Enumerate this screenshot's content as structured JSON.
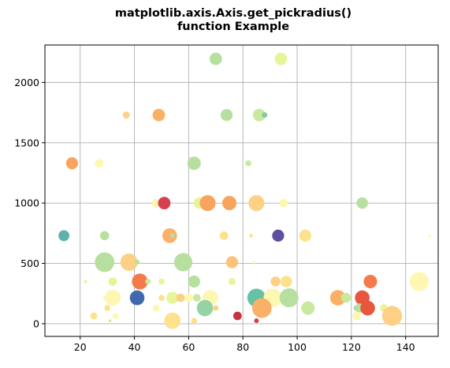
{
  "chart_data": {
    "type": "scatter",
    "title_lines": [
      "matplotlib.axis.Axis.get_pickradius()",
      "function Example"
    ],
    "xlabel": "",
    "ylabel": "",
    "xlim": [
      7,
      152
    ],
    "ylim": [
      -105,
      2310
    ],
    "xticks": [
      20,
      40,
      60,
      80,
      100,
      120,
      140
    ],
    "yticks": [
      0,
      500,
      1000,
      1500,
      2000
    ],
    "grid": true,
    "colormap": "Spectral",
    "points": [
      {
        "x": 70,
        "y": 2195,
        "size": 130,
        "color": "#b7e0a0"
      },
      {
        "x": 94,
        "y": 2195,
        "size": 130,
        "color": "#e6f598"
      },
      {
        "x": 37,
        "y": 1730,
        "size": 40,
        "color": "#fdd085"
      },
      {
        "x": 49,
        "y": 1730,
        "size": 130,
        "color": "#fbb068"
      },
      {
        "x": 74,
        "y": 1730,
        "size": 120,
        "color": "#b7e0a0"
      },
      {
        "x": 86,
        "y": 1730,
        "size": 130,
        "color": "#c9e99e"
      },
      {
        "x": 88,
        "y": 1730,
        "size": 25,
        "color": "#7fcc9d"
      },
      {
        "x": 17,
        "y": 1330,
        "size": 120,
        "color": "#f8a35e"
      },
      {
        "x": 27,
        "y": 1330,
        "size": 60,
        "color": "#fef7b2"
      },
      {
        "x": 62,
        "y": 1330,
        "size": 150,
        "color": "#b7e0a0"
      },
      {
        "x": 82,
        "y": 1330,
        "size": 30,
        "color": "#c9e99e"
      },
      {
        "x": 48,
        "y": 1000,
        "size": 60,
        "color": "#fef7b2"
      },
      {
        "x": 51,
        "y": 1000,
        "size": 130,
        "color": "#d5404e"
      },
      {
        "x": 64,
        "y": 1000,
        "size": 110,
        "color": "#e6f598"
      },
      {
        "x": 67,
        "y": 1000,
        "size": 210,
        "color": "#f8a35e"
      },
      {
        "x": 75,
        "y": 1000,
        "size": 170,
        "color": "#f8a35e"
      },
      {
        "x": 85,
        "y": 1000,
        "size": 210,
        "color": "#fdd085"
      },
      {
        "x": 95,
        "y": 1000,
        "size": 60,
        "color": "#fef7b2"
      },
      {
        "x": 124,
        "y": 1000,
        "size": 110,
        "color": "#b7e0a0"
      },
      {
        "x": 14,
        "y": 730,
        "size": 100,
        "color": "#5fb2ab"
      },
      {
        "x": 29,
        "y": 730,
        "size": 70,
        "color": "#b7e0a0"
      },
      {
        "x": 53,
        "y": 730,
        "size": 180,
        "color": "#fbb068"
      },
      {
        "x": 54,
        "y": 730,
        "size": 18,
        "color": "#b7e0a0"
      },
      {
        "x": 73,
        "y": 730,
        "size": 60,
        "color": "#fee18d"
      },
      {
        "x": 83,
        "y": 730,
        "size": 12,
        "color": "#fee18d"
      },
      {
        "x": 93,
        "y": 730,
        "size": 120,
        "color": "#5f4f9e"
      },
      {
        "x": 103,
        "y": 730,
        "size": 120,
        "color": "#fee18d"
      },
      {
        "x": 149,
        "y": 730,
        "size": 6,
        "color": "#fef7b2"
      },
      {
        "x": 29,
        "y": 510,
        "size": 320,
        "color": "#b7e0a0"
      },
      {
        "x": 38,
        "y": 510,
        "size": 250,
        "color": "#fdd085"
      },
      {
        "x": 41,
        "y": 510,
        "size": 20,
        "color": "#b7e0a0"
      },
      {
        "x": 58,
        "y": 510,
        "size": 280,
        "color": "#b7e0a0"
      },
      {
        "x": 76,
        "y": 510,
        "size": 120,
        "color": "#fdc37a"
      },
      {
        "x": 84,
        "y": 510,
        "size": 6,
        "color": "#fef7b2"
      },
      {
        "x": 22,
        "y": 350,
        "size": 8,
        "color": "#e6f598"
      },
      {
        "x": 32,
        "y": 350,
        "size": 60,
        "color": "#e6f598"
      },
      {
        "x": 40,
        "y": 350,
        "size": 25,
        "color": "#fee18d"
      },
      {
        "x": 42,
        "y": 350,
        "size": 210,
        "color": "#f57a49"
      },
      {
        "x": 45,
        "y": 350,
        "size": 25,
        "color": "#c9e99e"
      },
      {
        "x": 50,
        "y": 350,
        "size": 30,
        "color": "#e6f598"
      },
      {
        "x": 62,
        "y": 350,
        "size": 120,
        "color": "#b7e0a0"
      },
      {
        "x": 76,
        "y": 350,
        "size": 40,
        "color": "#e6f598"
      },
      {
        "x": 92,
        "y": 350,
        "size": 80,
        "color": "#fdd085"
      },
      {
        "x": 96,
        "y": 350,
        "size": 110,
        "color": "#fee18d"
      },
      {
        "x": 127,
        "y": 350,
        "size": 150,
        "color": "#f57a49"
      },
      {
        "x": 145,
        "y": 350,
        "size": 300,
        "color": "#fef7b2"
      },
      {
        "x": 29,
        "y": 215,
        "size": 8,
        "color": "#fef7b2"
      },
      {
        "x": 32,
        "y": 215,
        "size": 210,
        "color": "#fef7b2"
      },
      {
        "x": 41,
        "y": 215,
        "size": 180,
        "color": "#3e69ad"
      },
      {
        "x": 50,
        "y": 215,
        "size": 30,
        "color": "#fee18d"
      },
      {
        "x": 54,
        "y": 215,
        "size": 120,
        "color": "#e6f598"
      },
      {
        "x": 57,
        "y": 215,
        "size": 60,
        "color": "#fdd085"
      },
      {
        "x": 60,
        "y": 215,
        "size": 60,
        "color": "#fef7b2"
      },
      {
        "x": 63,
        "y": 215,
        "size": 50,
        "color": "#c9e99e"
      },
      {
        "x": 68,
        "y": 215,
        "size": 200,
        "color": "#fef7b2"
      },
      {
        "x": 85,
        "y": 215,
        "size": 280,
        "color": "#66c2a5"
      },
      {
        "x": 91,
        "y": 215,
        "size": 280,
        "color": "#fef7b2"
      },
      {
        "x": 97,
        "y": 215,
        "size": 300,
        "color": "#b7e0a0"
      },
      {
        "x": 115,
        "y": 215,
        "size": 200,
        "color": "#fbb068"
      },
      {
        "x": 118,
        "y": 215,
        "size": 80,
        "color": "#c9e99e"
      },
      {
        "x": 124,
        "y": 215,
        "size": 180,
        "color": "#e8563e"
      },
      {
        "x": 30,
        "y": 130,
        "size": 30,
        "color": "#fee18d"
      },
      {
        "x": 48,
        "y": 130,
        "size": 40,
        "color": "#fef7b2"
      },
      {
        "x": 66,
        "y": 130,
        "size": 220,
        "color": "#95d3a4"
      },
      {
        "x": 70,
        "y": 130,
        "size": 25,
        "color": "#fdd085"
      },
      {
        "x": 87,
        "y": 130,
        "size": 320,
        "color": "#fbb068"
      },
      {
        "x": 104,
        "y": 130,
        "size": 150,
        "color": "#c9e99e"
      },
      {
        "x": 122,
        "y": 130,
        "size": 30,
        "color": "#7fcc9d"
      },
      {
        "x": 123,
        "y": 130,
        "size": 70,
        "color": "#b7e0a0"
      },
      {
        "x": 126,
        "y": 130,
        "size": 180,
        "color": "#e8563e"
      },
      {
        "x": 132,
        "y": 130,
        "size": 50,
        "color": "#e6f598"
      },
      {
        "x": 25,
        "y": 65,
        "size": 40,
        "color": "#fee18d"
      },
      {
        "x": 33,
        "y": 65,
        "size": 30,
        "color": "#fef7b2"
      },
      {
        "x": 78,
        "y": 65,
        "size": 60,
        "color": "#c7323f"
      },
      {
        "x": 122,
        "y": 65,
        "size": 60,
        "color": "#fef7b2"
      },
      {
        "x": 135,
        "y": 65,
        "size": 330,
        "color": "#fdd085"
      },
      {
        "x": 31,
        "y": 25,
        "size": 6,
        "color": "#c9e99e"
      },
      {
        "x": 54,
        "y": 25,
        "size": 220,
        "color": "#fee18d"
      },
      {
        "x": 62,
        "y": 25,
        "size": 30,
        "color": "#fee18d"
      },
      {
        "x": 85,
        "y": 25,
        "size": 18,
        "color": "#d5404e"
      }
    ]
  }
}
